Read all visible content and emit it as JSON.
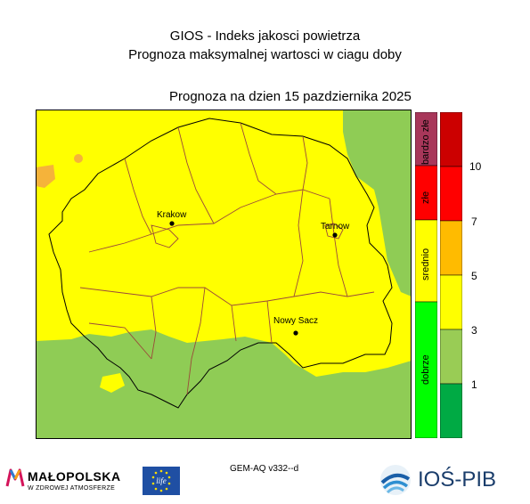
{
  "header": {
    "title": "GIOS - Indeks jakosci powietrza",
    "subtitle": "Prognoza maksymalnej wartosci w ciagu doby",
    "date_line": "Prognoza na dzien  15 pazdziernika 2025"
  },
  "map": {
    "cities": [
      {
        "name": "Krakow"
      },
      {
        "name": "Tarnow"
      },
      {
        "name": "Nowy Sacz"
      }
    ],
    "colors": {
      "background_yellow": "#ffff00",
      "green": "#8fcc55",
      "orange": "#f5b33a",
      "border_black": "#000000",
      "border_brown": "#9b4a3a"
    }
  },
  "legend": {
    "categories": [
      {
        "label": "bardzo złe",
        "color": "#a8375a"
      },
      {
        "label": "złe",
        "color": "#ff0000"
      },
      {
        "label": "srednio",
        "color": "#ffff00"
      },
      {
        "label": "dobrze",
        "color": "#00ff00"
      }
    ],
    "scale_colors": [
      "#cc0000",
      "#ff0000",
      "#ffbb00",
      "#ffff00",
      "#99cc55",
      "#00aa44"
    ],
    "scale_labels": [
      "10",
      "7",
      "5",
      "3",
      "1"
    ]
  },
  "footer": {
    "model": "GEM-AQ v332--d",
    "logo_left_name": "MAŁOPOLSKA",
    "logo_left_tagline": "W ZDROWEJ ATMOSFERZE",
    "eu_logo_text": "life",
    "logo_right": "IOŚ-PIB"
  }
}
